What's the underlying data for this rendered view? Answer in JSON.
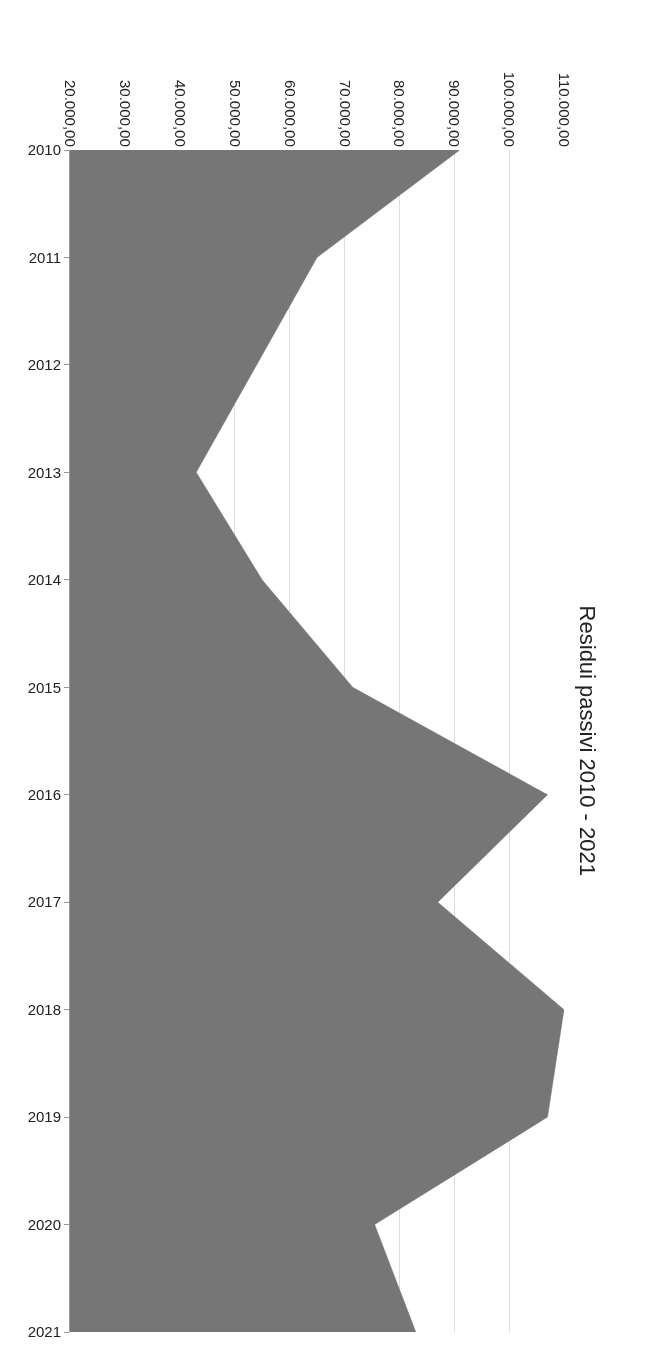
{
  "chart_data": {
    "type": "area",
    "title": "Residui passivi 2010 - 2021",
    "categories": [
      "2010",
      "2011",
      "2012",
      "2013",
      "2014",
      "2015",
      "2016",
      "2017",
      "2018",
      "2019",
      "2020",
      "2021"
    ],
    "orientation": "horizontal",
    "series": [
      {
        "color": "#767676",
        "values": [
          91000,
          65000,
          54000,
          43000,
          55000,
          71500,
          107000,
          87000,
          110000,
          107000,
          75500,
          83000
        ]
      }
    ],
    "xlim": [
      20000,
      110000
    ],
    "xticks": [
      {
        "value": 20000,
        "label": "20.000,00"
      },
      {
        "value": 30000,
        "label": "30.000,00"
      },
      {
        "value": 40000,
        "label": "40.000,00"
      },
      {
        "value": 50000,
        "label": "50.000,00"
      },
      {
        "value": 60000,
        "label": "60.000,00"
      },
      {
        "value": 70000,
        "label": "70.000,00"
      },
      {
        "value": 80000,
        "label": "80.000,00"
      },
      {
        "value": 90000,
        "label": "90.000,00"
      },
      {
        "value": 100000,
        "label": "100.000,00"
      },
      {
        "value": 110000,
        "label": "110.000,00"
      }
    ],
    "grid": "x"
  }
}
